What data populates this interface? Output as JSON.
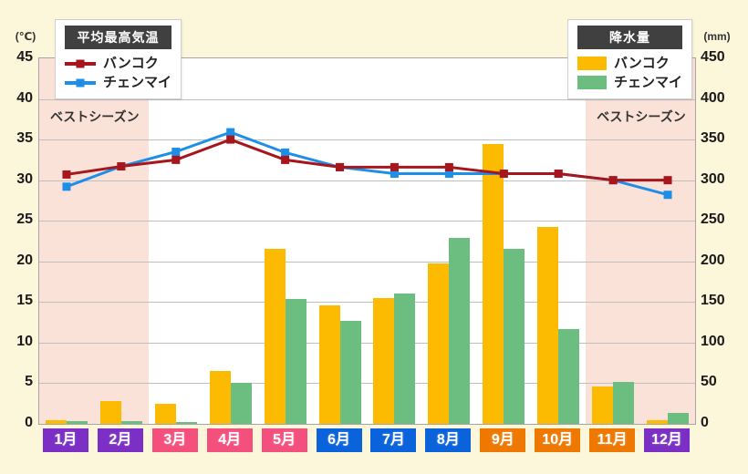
{
  "app": {
    "background_color": "#FCF6DA"
  },
  "legend_temp": {
    "title": "平均最高気温",
    "items": [
      {
        "label": "バンコク",
        "color": "#A6161C"
      },
      {
        "label": "チェンマイ",
        "color": "#1D8FE8"
      }
    ]
  },
  "legend_precip": {
    "title": "降水量",
    "items": [
      {
        "label": "バンコク",
        "color": "#FCBA00"
      },
      {
        "label": "チェンマイ",
        "color": "#6CBE80"
      }
    ]
  },
  "axes": {
    "left_unit": "(℃)",
    "right_unit": "(mm)",
    "left_ticks": [
      45,
      40,
      35,
      30,
      25,
      20,
      15,
      10,
      5,
      0
    ],
    "right_ticks": [
      450,
      400,
      350,
      300,
      250,
      200,
      150,
      100,
      50,
      0
    ]
  },
  "best_season_label": "ベストシーズン",
  "chart_data": {
    "type": "combo",
    "categories": [
      "1月",
      "2月",
      "3月",
      "4月",
      "5月",
      "6月",
      "7月",
      "8月",
      "9月",
      "10月",
      "11月",
      "12月"
    ],
    "month_label_colors": [
      "#7C2FC4",
      "#7C2FC4",
      "#F4507D",
      "#F4507D",
      "#F4507D",
      "#0B63DC",
      "#0B63DC",
      "#0B63DC",
      "#EE7800",
      "#EE7800",
      "#EE7800",
      "#7C2FC4"
    ],
    "temperature_lines": {
      "axis": "left",
      "unit": "℃",
      "ylim": [
        0,
        45
      ],
      "tick_step": 5,
      "series": [
        {
          "name": "バンコク",
          "color": "#A6161C",
          "marker": "square",
          "values": [
            30.7,
            31.7,
            32.5,
            35.0,
            32.5,
            31.6,
            31.6,
            31.6,
            30.8,
            30.8,
            30.0,
            30.0
          ]
        },
        {
          "name": "チェンマイ",
          "color": "#1D8FE8",
          "marker": "square",
          "values": [
            29.2,
            31.7,
            33.5,
            35.9,
            33.4,
            31.6,
            30.8,
            30.8,
            30.8,
            30.8,
            30.0,
            28.2
          ]
        }
      ]
    },
    "precipitation_bars": {
      "axis": "right",
      "unit": "mm",
      "ylim": [
        0,
        450
      ],
      "tick_step": 50,
      "series": [
        {
          "name": "バンコク",
          "color": "#FCBA00",
          "values": [
            4,
            28,
            25,
            65,
            215,
            146,
            155,
            197,
            344,
            242,
            46,
            4
          ]
        },
        {
          "name": "チェンマイ",
          "color": "#6CBE80",
          "values": [
            3,
            3,
            2,
            50,
            154,
            127,
            161,
            229,
            216,
            117,
            52,
            13
          ]
        }
      ]
    },
    "best_season_bands": {
      "color": "#FBE2D9",
      "month_ranges": [
        [
          1,
          2
        ],
        [
          11,
          12
        ]
      ]
    },
    "grid": true,
    "legend_position": "top"
  }
}
